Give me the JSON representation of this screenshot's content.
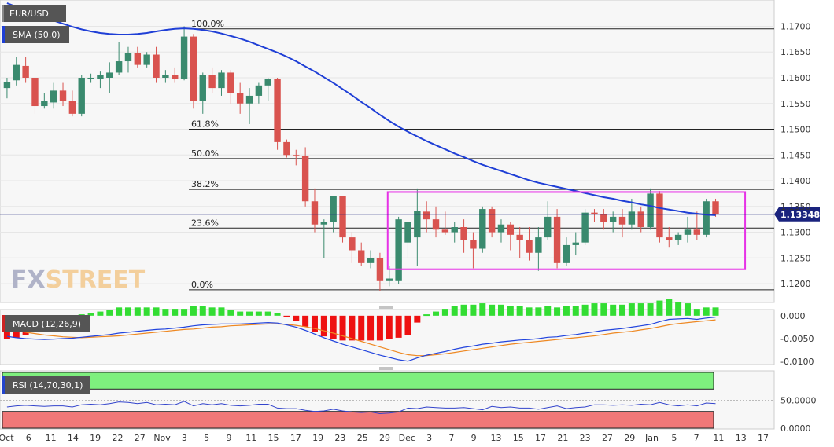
{
  "instrument": "EUR/USD",
  "indicators": {
    "sma_label": "SMA (50,0)",
    "macd_label": "MACD (12,26,9)",
    "rsi_label": "RSI (14,70,30,1)"
  },
  "watermark": {
    "fx": "FX",
    "street": "STREET"
  },
  "current_price": "1.133480",
  "colors": {
    "bull": "#3a8a6e",
    "bear": "#d9534f",
    "sma": "#1f3fd6",
    "rectangle": "#e632e6",
    "macd_pos": "#33dd33",
    "macd_neg": "#ee1111",
    "macd_line": "#2244dd",
    "signal_line": "#ee8822",
    "rsi_line": "#3344cc",
    "rsi_overbought": "#7ef07e",
    "rsi_oversold": "#f07878"
  },
  "chart_data": {
    "type": "candlestick",
    "price_axis": [
      "1.1700",
      "1.1650",
      "1.1600",
      "1.1550",
      "1.1500",
      "1.1450",
      "1.1400",
      "1.1350",
      "1.1300",
      "1.1250",
      "1.1200"
    ],
    "price_range": [
      1.1165,
      1.1745
    ],
    "fib_levels": [
      {
        "label": "100.0%",
        "price": 1.1695
      },
      {
        "label": "61.8%",
        "price": 1.15
      },
      {
        "label": "50.0%",
        "price": 1.1443
      },
      {
        "label": "38.2%",
        "price": 1.1383
      },
      {
        "label": "23.6%",
        "price": 1.1308
      },
      {
        "label": "0.0%",
        "price": 1.1188
      }
    ],
    "x_labels": [
      "Oct",
      "6",
      "11",
      "14",
      "19",
      "22",
      "27",
      "Nov",
      "3",
      "5",
      "9",
      "11",
      "15",
      "17",
      "19",
      "23",
      "25",
      "29",
      "Dec",
      "3",
      "7",
      "9",
      "13",
      "15",
      "17",
      "21",
      "23",
      "27",
      "29",
      "Jan",
      "5",
      "7",
      "11",
      "13",
      "17"
    ],
    "candles": [
      {
        "o": 1.158,
        "h": 1.16,
        "l": 1.156,
        "c": 1.1592
      },
      {
        "o": 1.1595,
        "h": 1.164,
        "l": 1.1585,
        "c": 1.1625
      },
      {
        "o": 1.1623,
        "h": 1.164,
        "l": 1.159,
        "c": 1.16
      },
      {
        "o": 1.16,
        "h": 1.16,
        "l": 1.153,
        "c": 1.1545
      },
      {
        "o": 1.1545,
        "h": 1.157,
        "l": 1.154,
        "c": 1.1555
      },
      {
        "o": 1.1552,
        "h": 1.159,
        "l": 1.154,
        "c": 1.1575
      },
      {
        "o": 1.1575,
        "h": 1.159,
        "l": 1.1545,
        "c": 1.1555
      },
      {
        "o": 1.1555,
        "h": 1.1575,
        "l": 1.1525,
        "c": 1.153
      },
      {
        "o": 1.153,
        "h": 1.1605,
        "l": 1.1525,
        "c": 1.16
      },
      {
        "o": 1.1598,
        "h": 1.1608,
        "l": 1.159,
        "c": 1.16
      },
      {
        "o": 1.1598,
        "h": 1.1612,
        "l": 1.158,
        "c": 1.1605
      },
      {
        "o": 1.16,
        "h": 1.163,
        "l": 1.157,
        "c": 1.161
      },
      {
        "o": 1.161,
        "h": 1.167,
        "l": 1.1605,
        "c": 1.1632
      },
      {
        "o": 1.1632,
        "h": 1.166,
        "l": 1.161,
        "c": 1.1648
      },
      {
        "o": 1.1648,
        "h": 1.166,
        "l": 1.162,
        "c": 1.1625
      },
      {
        "o": 1.1625,
        "h": 1.165,
        "l": 1.162,
        "c": 1.1645
      },
      {
        "o": 1.1645,
        "h": 1.166,
        "l": 1.159,
        "c": 1.16
      },
      {
        "o": 1.16,
        "h": 1.1615,
        "l": 1.159,
        "c": 1.1605
      },
      {
        "o": 1.1605,
        "h": 1.162,
        "l": 1.159,
        "c": 1.1598
      },
      {
        "o": 1.1598,
        "h": 1.17,
        "l": 1.1595,
        "c": 1.168
      },
      {
        "o": 1.168,
        "h": 1.1685,
        "l": 1.154,
        "c": 1.1555
      },
      {
        "o": 1.1555,
        "h": 1.161,
        "l": 1.153,
        "c": 1.1605
      },
      {
        "o": 1.1605,
        "h": 1.162,
        "l": 1.157,
        "c": 1.158
      },
      {
        "o": 1.158,
        "h": 1.1615,
        "l": 1.1565,
        "c": 1.161
      },
      {
        "o": 1.161,
        "h": 1.1615,
        "l": 1.155,
        "c": 1.157
      },
      {
        "o": 1.157,
        "h": 1.159,
        "l": 1.153,
        "c": 1.155
      },
      {
        "o": 1.155,
        "h": 1.158,
        "l": 1.151,
        "c": 1.1565
      },
      {
        "o": 1.1565,
        "h": 1.159,
        "l": 1.155,
        "c": 1.1585
      },
      {
        "o": 1.1585,
        "h": 1.16,
        "l": 1.1555,
        "c": 1.1598
      },
      {
        "o": 1.1598,
        "h": 1.16,
        "l": 1.146,
        "c": 1.1475
      },
      {
        "o": 1.1475,
        "h": 1.148,
        "l": 1.1445,
        "c": 1.145
      },
      {
        "o": 1.145,
        "h": 1.146,
        "l": 1.143,
        "c": 1.1448
      },
      {
        "o": 1.1448,
        "h": 1.1465,
        "l": 1.135,
        "c": 1.136
      },
      {
        "o": 1.136,
        "h": 1.1385,
        "l": 1.13,
        "c": 1.1315
      },
      {
        "o": 1.1315,
        "h": 1.1325,
        "l": 1.125,
        "c": 1.132
      },
      {
        "o": 1.132,
        "h": 1.137,
        "l": 1.13,
        "c": 1.137
      },
      {
        "o": 1.137,
        "h": 1.137,
        "l": 1.128,
        "c": 1.129
      },
      {
        "o": 1.129,
        "h": 1.13,
        "l": 1.124,
        "c": 1.1265
      },
      {
        "o": 1.1265,
        "h": 1.128,
        "l": 1.1235,
        "c": 1.124
      },
      {
        "o": 1.124,
        "h": 1.1265,
        "l": 1.123,
        "c": 1.125
      },
      {
        "o": 1.125,
        "h": 1.126,
        "l": 1.1185,
        "c": 1.1205
      },
      {
        "o": 1.1205,
        "h": 1.1235,
        "l": 1.1195,
        "c": 1.121
      },
      {
        "o": 1.1205,
        "h": 1.133,
        "l": 1.12,
        "c": 1.1325
      },
      {
        "o": 1.128,
        "h": 1.132,
        "l": 1.125,
        "c": 1.132
      },
      {
        "o": 1.129,
        "h": 1.1385,
        "l": 1.1235,
        "c": 1.1342
      },
      {
        "o": 1.134,
        "h": 1.136,
        "l": 1.13,
        "c": 1.1325
      },
      {
        "o": 1.1325,
        "h": 1.135,
        "l": 1.129,
        "c": 1.1305
      },
      {
        "o": 1.1305,
        "h": 1.134,
        "l": 1.1295,
        "c": 1.13
      },
      {
        "o": 1.13,
        "h": 1.132,
        "l": 1.128,
        "c": 1.131
      },
      {
        "o": 1.131,
        "h": 1.1325,
        "l": 1.126,
        "c": 1.1285
      },
      {
        "o": 1.1285,
        "h": 1.13,
        "l": 1.123,
        "c": 1.1268
      },
      {
        "o": 1.1268,
        "h": 1.135,
        "l": 1.126,
        "c": 1.1345
      },
      {
        "o": 1.1345,
        "h": 1.135,
        "l": 1.129,
        "c": 1.13
      },
      {
        "o": 1.13,
        "h": 1.1325,
        "l": 1.128,
        "c": 1.1315
      },
      {
        "o": 1.1315,
        "h": 1.132,
        "l": 1.1265,
        "c": 1.1295
      },
      {
        "o": 1.1295,
        "h": 1.131,
        "l": 1.125,
        "c": 1.1285
      },
      {
        "o": 1.1285,
        "h": 1.131,
        "l": 1.1245,
        "c": 1.126
      },
      {
        "o": 1.126,
        "h": 1.131,
        "l": 1.1225,
        "c": 1.129
      },
      {
        "o": 1.129,
        "h": 1.136,
        "l": 1.1285,
        "c": 1.133
      },
      {
        "o": 1.133,
        "h": 1.1345,
        "l": 1.123,
        "c": 1.124
      },
      {
        "o": 1.124,
        "h": 1.129,
        "l": 1.1235,
        "c": 1.1275
      },
      {
        "o": 1.1275,
        "h": 1.13,
        "l": 1.1255,
        "c": 1.128
      },
      {
        "o": 1.128,
        "h": 1.1345,
        "l": 1.1275,
        "c": 1.1338
      },
      {
        "o": 1.1338,
        "h": 1.1345,
        "l": 1.132,
        "c": 1.1335
      },
      {
        "o": 1.1335,
        "h": 1.1345,
        "l": 1.1305,
        "c": 1.132
      },
      {
        "o": 1.132,
        "h": 1.134,
        "l": 1.13,
        "c": 1.133
      },
      {
        "o": 1.133,
        "h": 1.1345,
        "l": 1.129,
        "c": 1.1315
      },
      {
        "o": 1.1315,
        "h": 1.1365,
        "l": 1.1305,
        "c": 1.134
      },
      {
        "o": 1.134,
        "h": 1.135,
        "l": 1.13,
        "c": 1.131
      },
      {
        "o": 1.131,
        "h": 1.1385,
        "l": 1.1305,
        "c": 1.1375
      },
      {
        "o": 1.1375,
        "h": 1.138,
        "l": 1.128,
        "c": 1.129
      },
      {
        "o": 1.129,
        "h": 1.131,
        "l": 1.127,
        "c": 1.1285
      },
      {
        "o": 1.1285,
        "h": 1.13,
        "l": 1.1275,
        "c": 1.1295
      },
      {
        "o": 1.1295,
        "h": 1.133,
        "l": 1.128,
        "c": 1.1305
      },
      {
        "o": 1.1305,
        "h": 1.134,
        "l": 1.1285,
        "c": 1.1295
      },
      {
        "o": 1.1295,
        "h": 1.1365,
        "l": 1.129,
        "c": 1.136
      },
      {
        "o": 1.136,
        "h": 1.1365,
        "l": 1.133,
        "c": 1.1335
      }
    ],
    "sma": [
      1.1745,
      1.1738,
      1.1732,
      1.1725,
      1.1718,
      1.1711,
      1.1705,
      1.1699,
      1.1694,
      1.169,
      1.1687,
      1.1685,
      1.1684,
      1.1684,
      1.1685,
      1.1687,
      1.169,
      1.1693,
      1.1695,
      1.1696,
      1.1695,
      1.1693,
      1.169,
      1.1686,
      1.1681,
      1.1676,
      1.167,
      1.1663,
      1.1656,
      1.1649,
      1.1641,
      1.1632,
      1.1622,
      1.1612,
      1.1601,
      1.159,
      1.1578,
      1.1566,
      1.1553,
      1.1541,
      1.1528,
      1.1516,
      1.1505,
      1.1495,
      1.1486,
      1.1477,
      1.1469,
      1.1461,
      1.1453,
      1.1446,
      1.1438,
      1.1431,
      1.1425,
      1.1419,
      1.1413,
      1.1407,
      1.1401,
      1.1396,
      1.1392,
      1.1388,
      1.1384,
      1.138,
      1.1376,
      1.1372,
      1.1368,
      1.1365,
      1.1361,
      1.1358,
      1.1354,
      1.1351,
      1.1347,
      1.1344,
      1.1341,
      1.1338,
      1.1336,
      1.1334,
      1.1333
    ],
    "rectangle": {
      "start_index": 41,
      "end_index": 79,
      "top": 1.1378,
      "bottom": 1.1228
    },
    "macd_axis": [
      "0.000",
      "-0.0050",
      "-0.0100"
    ],
    "macd_range": [
      -0.0103,
      0.001
    ],
    "macd": [
      -0.0045,
      -0.0048,
      -0.005,
      -0.0051,
      -0.0052,
      -0.0051,
      -0.005,
      -0.0049,
      -0.0047,
      -0.0045,
      -0.0043,
      -0.0041,
      -0.0038,
      -0.0036,
      -0.0034,
      -0.0032,
      -0.003,
      -0.0029,
      -0.0027,
      -0.0025,
      -0.0022,
      -0.002,
      -0.0019,
      -0.0018,
      -0.0018,
      -0.0018,
      -0.0017,
      -0.0016,
      -0.0015,
      -0.0016,
      -0.002,
      -0.0025,
      -0.0032,
      -0.004,
      -0.0048,
      -0.0055,
      -0.0062,
      -0.0068,
      -0.0074,
      -0.008,
      -0.0086,
      -0.0091,
      -0.0096,
      -0.0099,
      -0.0092,
      -0.0086,
      -0.0082,
      -0.0078,
      -0.0073,
      -0.0069,
      -0.0066,
      -0.0062,
      -0.006,
      -0.0057,
      -0.0055,
      -0.0053,
      -0.0052,
      -0.005,
      -0.0047,
      -0.0046,
      -0.0043,
      -0.0041,
      -0.0038,
      -0.0035,
      -0.0032,
      -0.003,
      -0.0028,
      -0.0025,
      -0.0022,
      -0.0019,
      -0.0013,
      -0.0008,
      -0.0007,
      -0.0006,
      -0.0008,
      -0.0005,
      -0.0003
    ],
    "signal": [
      -0.0028,
      -0.0032,
      -0.0036,
      -0.0039,
      -0.0042,
      -0.0044,
      -0.0046,
      -0.0047,
      -0.0048,
      -0.0047,
      -0.0046,
      -0.0045,
      -0.0044,
      -0.0042,
      -0.004,
      -0.0038,
      -0.0036,
      -0.0034,
      -0.0032,
      -0.003,
      -0.0029,
      -0.0027,
      -0.0025,
      -0.0024,
      -0.0022,
      -0.0021,
      -0.002,
      -0.0019,
      -0.0018,
      -0.0018,
      -0.0019,
      -0.0021,
      -0.0024,
      -0.0028,
      -0.0033,
      -0.0038,
      -0.0044,
      -0.005,
      -0.0056,
      -0.0062,
      -0.0068,
      -0.0074,
      -0.008,
      -0.0085,
      -0.0087,
      -0.0087,
      -0.0085,
      -0.0083,
      -0.008,
      -0.0077,
      -0.0074,
      -0.0071,
      -0.0068,
      -0.0065,
      -0.0062,
      -0.006,
      -0.0058,
      -0.0056,
      -0.0054,
      -0.0052,
      -0.005,
      -0.0048,
      -0.0046,
      -0.0044,
      -0.0041,
      -0.0038,
      -0.0036,
      -0.0034,
      -0.0031,
      -0.0028,
      -0.0024,
      -0.002,
      -0.0017,
      -0.0015,
      -0.0013,
      -0.0011,
      -0.0009
    ],
    "rsi_axis": [
      "50.0000",
      "0.0000"
    ],
    "rsi_range": [
      0,
      100
    ],
    "rsi": [
      38,
      40,
      41,
      40,
      39,
      40,
      40,
      38,
      42,
      43,
      42,
      44,
      47,
      46,
      44,
      46,
      42,
      43,
      42,
      48,
      40,
      44,
      42,
      44,
      41,
      40,
      41,
      43,
      43,
      36,
      35,
      35,
      32,
      30,
      31,
      34,
      31,
      29,
      28,
      29,
      26,
      27,
      29,
      36,
      35,
      38,
      37,
      36,
      36,
      37,
      35,
      33,
      39,
      37,
      38,
      36,
      36,
      34,
      37,
      40,
      35,
      37,
      38,
      42,
      42,
      41,
      42,
      41,
      43,
      42,
      46,
      42,
      40,
      42,
      40,
      45,
      44
    ]
  }
}
